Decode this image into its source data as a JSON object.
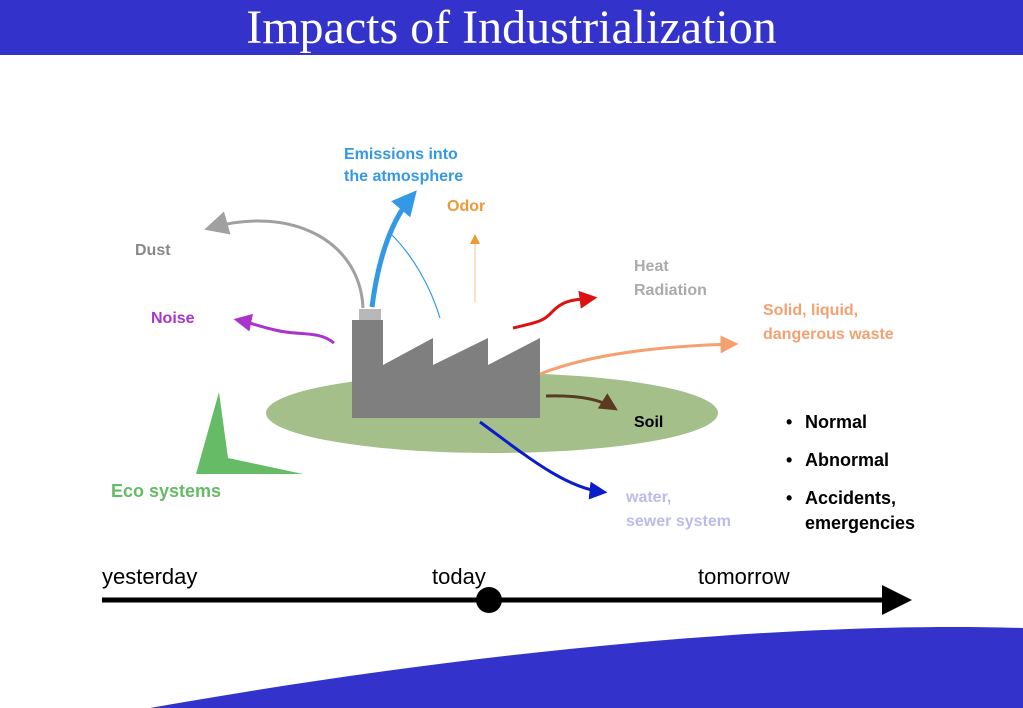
{
  "title": "Impacts of Industrialization",
  "labels": {
    "emissions": "Emissions into\nthe atmosphere",
    "odor": "Odor",
    "dust": "Dust",
    "noise": "Noise",
    "heat": "Heat\nRadiation",
    "waste": "Solid, liquid,\ndangerous waste",
    "soil": "Soil",
    "water": "water,\nsewer system",
    "eco": "Eco systems"
  },
  "bullets": [
    "Normal",
    "Abnormal",
    "Accidents,\nemergencies"
  ],
  "timeline": {
    "past": "yesterday",
    "present": "today",
    "future": "tomorrow"
  },
  "colors": {
    "title_bar": "#3333cc",
    "emissions": "#3399e6",
    "odor": "#ee9933",
    "dust": "#888888",
    "noise": "#aa33cc",
    "heat": "#aaaaaa",
    "heat_arrow": "#dd1111",
    "waste": "#f4a070",
    "soil": "#5a3a20",
    "water_text": "#bbbbee",
    "water_arrow": "#0a1ccc",
    "eco": "#66bb66",
    "ground": "#a4bf8a",
    "factory": "#7f7f7f"
  }
}
